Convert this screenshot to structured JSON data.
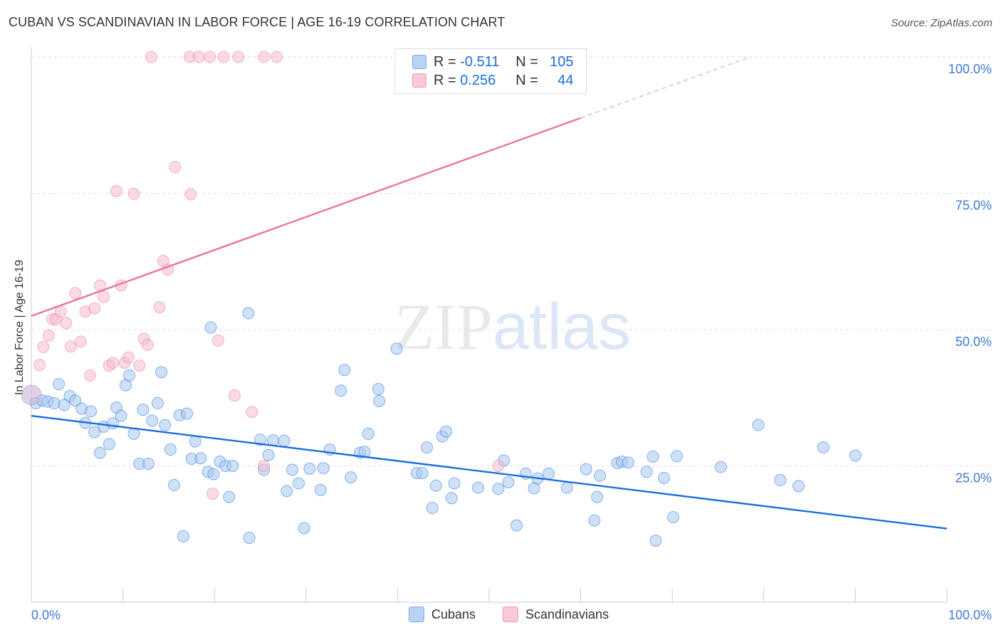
{
  "title": "CUBAN VS SCANDINAVIAN IN LABOR FORCE | AGE 16-19 CORRELATION CHART",
  "source": "Source: ZipAtlas.com",
  "watermark": "ZIPatlas",
  "legend": {
    "rows": [
      {
        "r_label": "R = ",
        "r_value": "-0.511",
        "n_label": "N = ",
        "n_value": "105",
        "color": "#9fc3ec"
      },
      {
        "r_label": "R = ",
        "r_value": "0.256",
        "n_label": "N = ",
        "n_value": "44",
        "color": "#f4aec4"
      }
    ]
  },
  "bottom_legend": {
    "cubans": "Cubans",
    "scandinavians": "Scandinavians"
  },
  "chart_data": {
    "type": "scatter",
    "ylabel": "In Labor Force | Age 16-19",
    "xlim": [
      0,
      100
    ],
    "ylim": [
      0,
      100
    ],
    "x_tick_labels": [
      "0.0%",
      "100.0%"
    ],
    "y_tick_labels": [
      "25.0%",
      "50.0%",
      "75.0%",
      "100.0%"
    ],
    "y_ticks": [
      25,
      50,
      75,
      100
    ],
    "grid": true,
    "legend_position": "top-center",
    "series": [
      {
        "name": "Cubans",
        "color": "#1a6fdb",
        "fill": "#a9c9f0",
        "trend": {
          "x0": 0,
          "y0": 34.2,
          "x1": 100,
          "y1": 13.5,
          "solid_until": 100
        },
        "points": [
          [
            0.5,
            36.5
          ],
          [
            1.2,
            37.0
          ],
          [
            1.8,
            36.8
          ],
          [
            2.5,
            36.5
          ],
          [
            3.0,
            40.0
          ],
          [
            3.6,
            36.2
          ],
          [
            4.2,
            37.8
          ],
          [
            4.8,
            37.0
          ],
          [
            5.5,
            35.5
          ],
          [
            5.9,
            32.9
          ],
          [
            6.5,
            35.0
          ],
          [
            6.9,
            31.2
          ],
          [
            7.5,
            27.4
          ],
          [
            7.9,
            32.2
          ],
          [
            8.5,
            29.0
          ],
          [
            8.9,
            32.8
          ],
          [
            9.3,
            35.7
          ],
          [
            9.8,
            34.2
          ],
          [
            10.3,
            39.8
          ],
          [
            10.7,
            41.6
          ],
          [
            11.2,
            30.9
          ],
          [
            11.8,
            25.4
          ],
          [
            12.2,
            35.3
          ],
          [
            12.8,
            25.4
          ],
          [
            13.2,
            33.3
          ],
          [
            13.8,
            36.5
          ],
          [
            14.2,
            42.2
          ],
          [
            14.6,
            32.5
          ],
          [
            15.2,
            28.0
          ],
          [
            15.6,
            21.5
          ],
          [
            16.2,
            34.3
          ],
          [
            16.6,
            12.1
          ],
          [
            17.0,
            34.6
          ],
          [
            17.5,
            26.3
          ],
          [
            17.9,
            29.5
          ],
          [
            18.5,
            26.4
          ],
          [
            19.3,
            23.9
          ],
          [
            19.6,
            50.4
          ],
          [
            19.9,
            23.5
          ],
          [
            20.6,
            25.8
          ],
          [
            21.2,
            25.0
          ],
          [
            21.6,
            19.3
          ],
          [
            22.0,
            25.0
          ],
          [
            23.7,
            53.0
          ],
          [
            23.8,
            11.8
          ],
          [
            25.0,
            29.8
          ],
          [
            25.4,
            24.3
          ],
          [
            25.9,
            27.0
          ],
          [
            26.4,
            29.7
          ],
          [
            27.6,
            29.6
          ],
          [
            27.9,
            20.4
          ],
          [
            28.5,
            24.3
          ],
          [
            29.2,
            21.8
          ],
          [
            29.8,
            13.6
          ],
          [
            30.4,
            24.5
          ],
          [
            31.6,
            20.6
          ],
          [
            31.9,
            24.6
          ],
          [
            32.6,
            28.0
          ],
          [
            33.8,
            38.8
          ],
          [
            34.2,
            42.6
          ],
          [
            34.9,
            22.9
          ],
          [
            35.9,
            27.4
          ],
          [
            36.4,
            27.6
          ],
          [
            36.8,
            30.9
          ],
          [
            37.9,
            39.1
          ],
          [
            38.0,
            36.9
          ],
          [
            39.9,
            46.5
          ],
          [
            42.1,
            23.7
          ],
          [
            42.7,
            23.7
          ],
          [
            43.2,
            28.4
          ],
          [
            43.8,
            17.3
          ],
          [
            44.2,
            21.4
          ],
          [
            44.9,
            30.4
          ],
          [
            45.3,
            31.3
          ],
          [
            45.9,
            19.1
          ],
          [
            46.2,
            21.8
          ],
          [
            48.8,
            21.0
          ],
          [
            51.0,
            20.8
          ],
          [
            51.6,
            26.0
          ],
          [
            52.1,
            22.0
          ],
          [
            53.0,
            14.1
          ],
          [
            54.0,
            23.6
          ],
          [
            54.9,
            20.9
          ],
          [
            55.3,
            22.7
          ],
          [
            56.5,
            23.6
          ],
          [
            58.5,
            21.0
          ],
          [
            60.6,
            24.4
          ],
          [
            61.5,
            15.0
          ],
          [
            61.8,
            19.3
          ],
          [
            62.1,
            23.2
          ],
          [
            64.0,
            25.5
          ],
          [
            64.5,
            25.8
          ],
          [
            65.2,
            25.6
          ],
          [
            67.2,
            23.9
          ],
          [
            67.9,
            26.7
          ],
          [
            68.2,
            11.3
          ],
          [
            69.1,
            22.8
          ],
          [
            70.1,
            15.6
          ],
          [
            70.5,
            26.8
          ],
          [
            75.3,
            24.8
          ],
          [
            79.4,
            32.5
          ],
          [
            81.8,
            22.4
          ],
          [
            83.8,
            21.3
          ],
          [
            86.5,
            28.4
          ],
          [
            90.0,
            26.9
          ]
        ]
      },
      {
        "name": "Scandinavians",
        "color": "#e8769b",
        "fill": "#f6bccc",
        "trend": {
          "x0": 0,
          "y0": 52.5,
          "x1": 100,
          "y1": 113.0,
          "solid_until": 60
        },
        "points": [
          [
            0.9,
            43.5
          ],
          [
            1.3,
            46.8
          ],
          [
            1.9,
            48.9
          ],
          [
            2.3,
            51.9
          ],
          [
            2.7,
            51.9
          ],
          [
            3.2,
            53.3
          ],
          [
            3.8,
            51.2
          ],
          [
            4.3,
            46.9
          ],
          [
            4.8,
            56.7
          ],
          [
            5.4,
            47.8
          ],
          [
            5.9,
            53.3
          ],
          [
            6.4,
            41.6
          ],
          [
            6.9,
            53.9
          ],
          [
            7.5,
            58.1
          ],
          [
            7.9,
            56.0
          ],
          [
            8.5,
            43.4
          ],
          [
            8.9,
            43.9
          ],
          [
            9.3,
            75.4
          ],
          [
            9.8,
            58.1
          ],
          [
            10.2,
            43.9
          ],
          [
            10.6,
            44.9
          ],
          [
            11.2,
            74.9
          ],
          [
            11.8,
            43.4
          ],
          [
            12.3,
            48.3
          ],
          [
            12.7,
            47.2
          ],
          [
            14.0,
            54.1
          ],
          [
            14.4,
            62.6
          ],
          [
            14.9,
            61.0
          ],
          [
            15.7,
            79.8
          ],
          [
            17.4,
            74.8
          ],
          [
            19.8,
            19.9
          ],
          [
            20.4,
            48.0
          ],
          [
            22.2,
            37.9
          ],
          [
            24.1,
            34.9
          ],
          [
            25.4,
            25.0
          ],
          [
            26.8,
            100.0
          ],
          [
            17.3,
            100.0
          ],
          [
            13.1,
            100.0
          ],
          [
            18.3,
            100.0
          ],
          [
            19.5,
            100.0
          ],
          [
            21.0,
            100.0
          ],
          [
            22.6,
            100.0
          ],
          [
            25.4,
            100.0
          ],
          [
            51.0,
            25.0
          ]
        ]
      }
    ]
  }
}
